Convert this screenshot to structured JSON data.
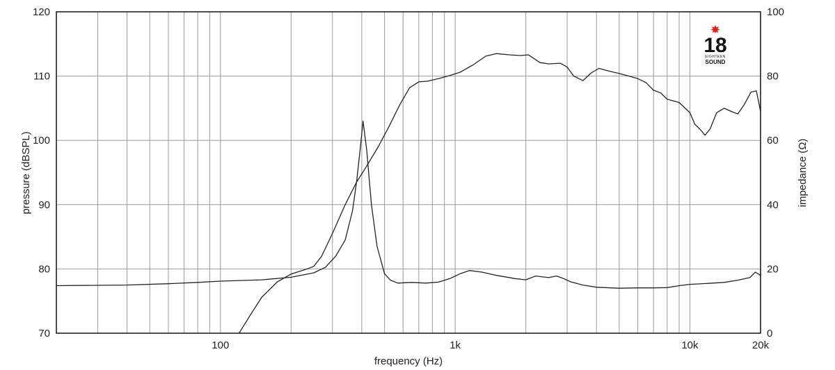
{
  "chart_data": {
    "type": "line",
    "x_scale": "log",
    "xlim": [
      20,
      20000
    ],
    "x_ticks": [
      {
        "value": 100,
        "label": "100"
      },
      {
        "value": 1000,
        "label": "1k"
      },
      {
        "value": 10000,
        "label": "10k"
      },
      {
        "value": 20000,
        "label": "20k"
      }
    ],
    "xlabel": "frequency (Hz)",
    "y_left": {
      "label": "pressure (dBSPL)",
      "lim": [
        70,
        120
      ],
      "ticks": [
        "70",
        "80",
        "90",
        "100",
        "110",
        "120"
      ]
    },
    "y_right": {
      "label": "impedance (Ω)",
      "lim": [
        0,
        100
      ],
      "ticks": [
        "0",
        "20",
        "40",
        "60",
        "80",
        "100"
      ]
    },
    "grid": true,
    "series": [
      {
        "axis": "left",
        "points": [
          [
            120,
            70
          ],
          [
            135,
            73
          ],
          [
            150,
            75.6
          ],
          [
            175,
            78
          ],
          [
            200,
            79.2
          ],
          [
            230,
            79.9
          ],
          [
            250,
            80.4
          ],
          [
            270,
            82
          ],
          [
            300,
            85.5
          ],
          [
            340,
            90
          ],
          [
            380,
            93.5
          ],
          [
            420,
            96
          ],
          [
            470,
            99
          ],
          [
            520,
            102
          ],
          [
            580,
            105.5
          ],
          [
            640,
            108.2
          ],
          [
            700,
            109.1
          ],
          [
            760,
            109.2
          ],
          [
            850,
            109.6
          ],
          [
            950,
            110.1
          ],
          [
            1050,
            110.6
          ],
          [
            1200,
            111.8
          ],
          [
            1350,
            113.1
          ],
          [
            1500,
            113.5
          ],
          [
            1700,
            113.3
          ],
          [
            1900,
            113.2
          ],
          [
            2050,
            113.3
          ],
          [
            2300,
            112.1
          ],
          [
            2500,
            111.9
          ],
          [
            2800,
            112.0
          ],
          [
            3000,
            111.4
          ],
          [
            3200,
            110.0
          ],
          [
            3500,
            109.3
          ],
          [
            3800,
            110.5
          ],
          [
            4100,
            111.2
          ],
          [
            4500,
            110.8
          ],
          [
            5000,
            110.4
          ],
          [
            5500,
            110.0
          ],
          [
            6000,
            109.6
          ],
          [
            6500,
            109.0
          ],
          [
            7000,
            107.8
          ],
          [
            7500,
            107.4
          ],
          [
            8000,
            106.4
          ],
          [
            9000,
            105.9
          ],
          [
            10000,
            104.3
          ],
          [
            10500,
            102.5
          ],
          [
            11000,
            101.8
          ],
          [
            11600,
            100.8
          ],
          [
            12200,
            101.8
          ],
          [
            13000,
            104.3
          ],
          [
            14000,
            105.0
          ],
          [
            15000,
            104.5
          ],
          [
            16000,
            104.1
          ],
          [
            17000,
            105.5
          ],
          [
            18200,
            107.5
          ],
          [
            19200,
            107.7
          ],
          [
            20000,
            104.5
          ]
        ]
      },
      {
        "axis": "right",
        "points": [
          [
            20,
            14.8
          ],
          [
            40,
            15.0
          ],
          [
            60,
            15.4
          ],
          [
            80,
            15.8
          ],
          [
            100,
            16.2
          ],
          [
            150,
            16.6
          ],
          [
            200,
            17.4
          ],
          [
            250,
            18.8
          ],
          [
            280,
            20.5
          ],
          [
            310,
            24
          ],
          [
            340,
            29
          ],
          [
            365,
            38
          ],
          [
            380,
            47
          ],
          [
            395,
            58
          ],
          [
            405,
            66
          ],
          [
            420,
            57
          ],
          [
            440,
            40
          ],
          [
            465,
            27
          ],
          [
            500,
            18.5
          ],
          [
            530,
            16.5
          ],
          [
            570,
            15.6
          ],
          [
            650,
            15.8
          ],
          [
            750,
            15.6
          ],
          [
            850,
            15.9
          ],
          [
            950,
            17
          ],
          [
            1050,
            18.5
          ],
          [
            1150,
            19.5
          ],
          [
            1300,
            19.0
          ],
          [
            1500,
            18
          ],
          [
            1800,
            17
          ],
          [
            2000,
            16.6
          ],
          [
            2200,
            17.8
          ],
          [
            2500,
            17.3
          ],
          [
            2700,
            17.8
          ],
          [
            2900,
            17.0
          ],
          [
            3100,
            16.0
          ],
          [
            3500,
            15.0
          ],
          [
            4000,
            14.3
          ],
          [
            5000,
            14.0
          ],
          [
            6000,
            14.1
          ],
          [
            7000,
            14.1
          ],
          [
            8000,
            14.2
          ],
          [
            9000,
            14.8
          ],
          [
            10000,
            15.2
          ],
          [
            12000,
            15.5
          ],
          [
            14000,
            15.8
          ],
          [
            16000,
            16.5
          ],
          [
            18000,
            17.3
          ],
          [
            19000,
            19.0
          ],
          [
            20000,
            18.0
          ]
        ]
      }
    ]
  },
  "logo": {
    "number": "18",
    "line1": "EIGHTEEN",
    "line2": "SOUND",
    "star_color": "#e01e1e"
  },
  "colors": {
    "curve": "#222222",
    "grid": "#9a9a9a",
    "frame": "#111111"
  }
}
